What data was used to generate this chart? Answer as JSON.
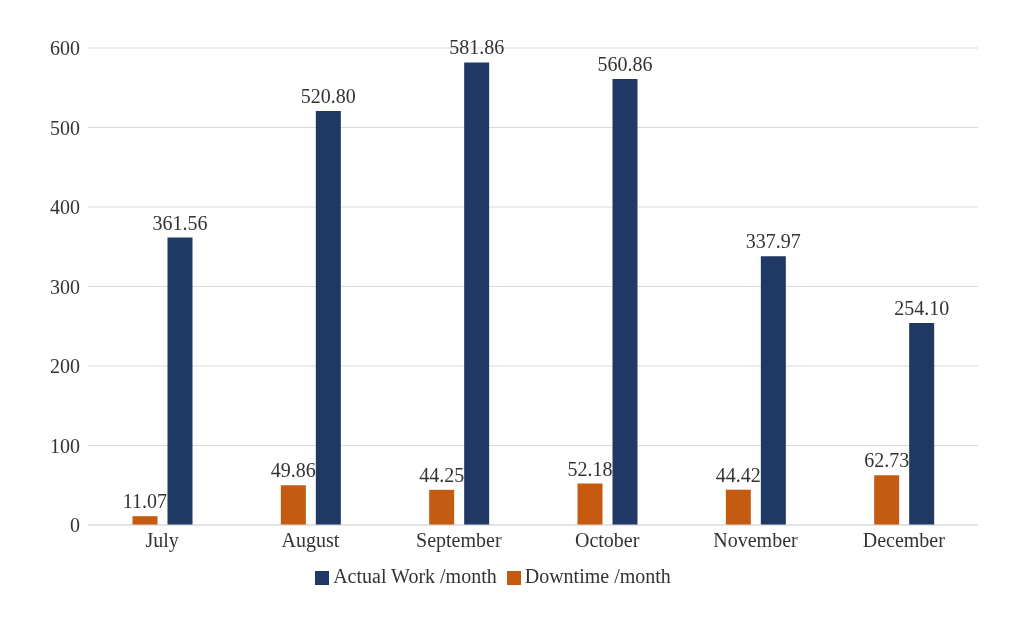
{
  "chart_data": {
    "type": "bar",
    "categories": [
      "July",
      "August",
      "September",
      "October",
      "November",
      "December"
    ],
    "series": [
      {
        "name": "Downtime /month",
        "color": "#c55a11",
        "values": [
          11.07,
          49.86,
          44.25,
          52.18,
          44.42,
          62.73
        ],
        "value_labels": [
          "11.07",
          "49.86",
          "44.25",
          "52.18",
          "44.42",
          "62.73"
        ]
      },
      {
        "name": "Actual Work /month",
        "color": "#1f3864",
        "values": [
          361.56,
          520.8,
          581.86,
          560.86,
          337.97,
          254.1
        ],
        "value_labels": [
          "361.56",
          "520.80",
          "581.86",
          "560.86",
          "337.97",
          "254.10"
        ]
      }
    ],
    "ylim": [
      0,
      600
    ],
    "yticks": [
      0,
      100,
      200,
      300,
      400,
      500,
      600
    ],
    "grid": "y",
    "legend": "bottom"
  }
}
